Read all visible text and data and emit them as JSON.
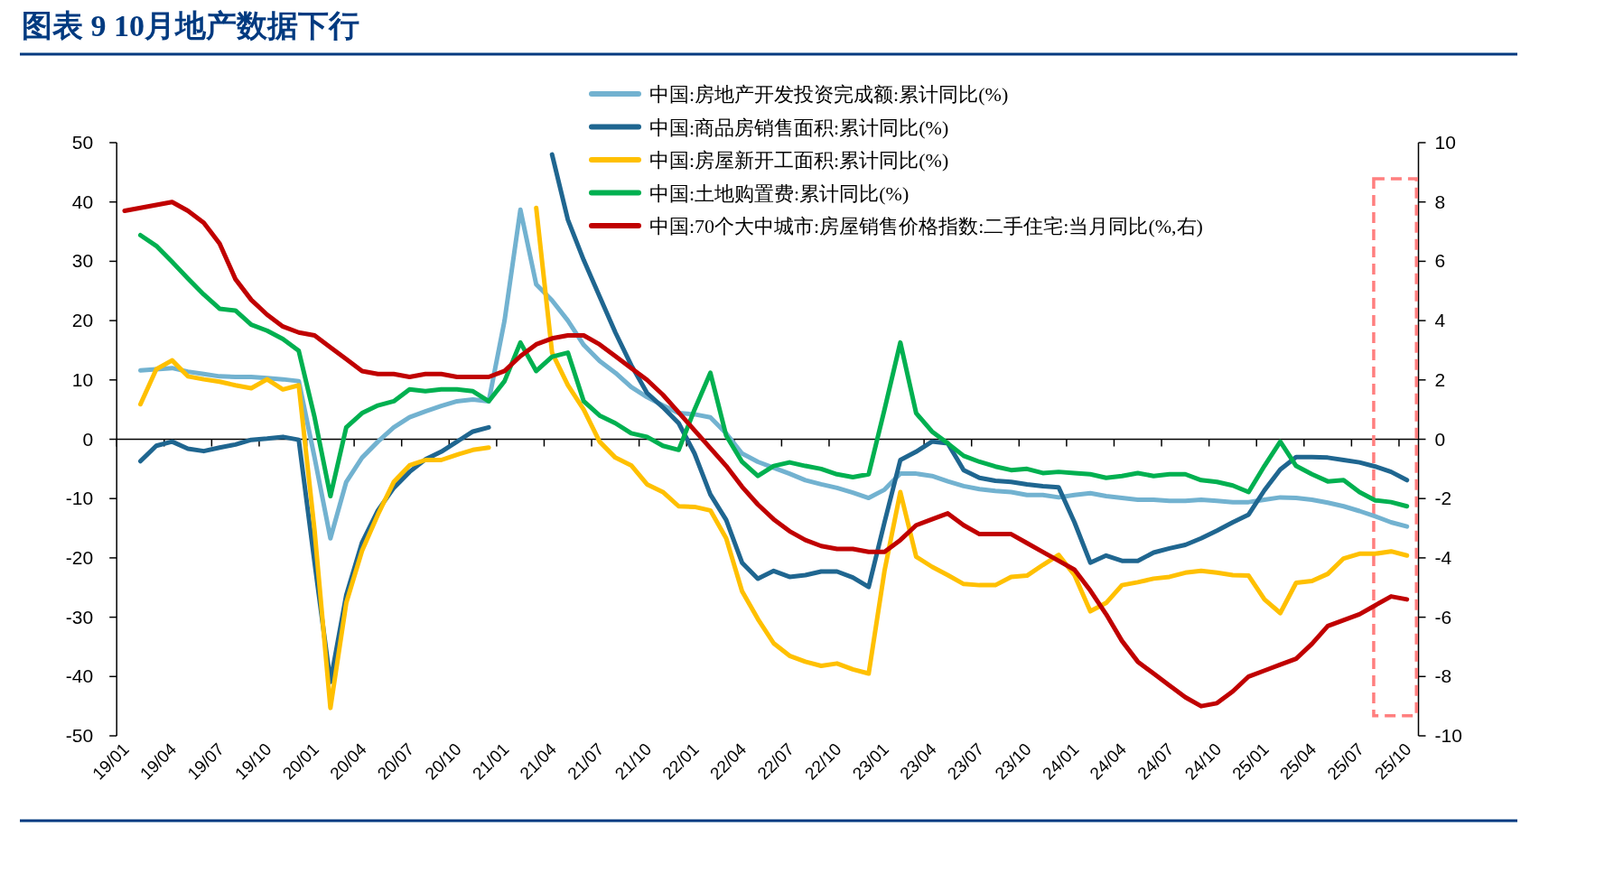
{
  "chart_data": {
    "type": "line",
    "title": "图表 9   10月地产数据下行",
    "categories": [
      "19/01",
      null,
      null,
      "19/04",
      null,
      null,
      "19/07",
      null,
      null,
      "19/10",
      null,
      null,
      "20/01",
      null,
      null,
      "20/04",
      null,
      null,
      "20/07",
      null,
      null,
      "20/10",
      null,
      null,
      "21/01",
      null,
      null,
      "21/04",
      null,
      null,
      "21/07",
      null,
      null,
      "21/10",
      null,
      null,
      "22/01",
      null,
      null,
      "22/04",
      null,
      null,
      "22/07",
      null,
      null,
      "22/10",
      null,
      null,
      "23/01",
      null,
      null,
      "23/04",
      null,
      null,
      "23/07",
      null,
      null,
      "23/10",
      null,
      null,
      "24/01",
      null,
      null,
      "24/04",
      null,
      null,
      "24/07",
      null,
      null,
      "24/10",
      null,
      null,
      "25/01",
      null,
      null,
      "25/04",
      null,
      null,
      "25/07",
      null,
      null,
      "25/10"
    ],
    "series": [
      {
        "name": "中国:房地产开发投资完成额:累计同比(%)",
        "color": "#72b2d0",
        "values": [
          null,
          11.6,
          11.8,
          12.0,
          11.4,
          11.0,
          10.6,
          10.5,
          10.5,
          10.3,
          10.1,
          9.8,
          -3.1,
          -16.7,
          -7.2,
          -3.1,
          -0.4,
          2.0,
          3.7,
          4.7,
          5.6,
          6.4,
          6.7,
          6.4,
          20.0,
          38.7,
          26.1,
          23.4,
          20.0,
          15.9,
          13.2,
          11.2,
          8.8,
          7.1,
          5.7,
          4.4,
          4.2,
          3.7,
          1.0,
          -2.4,
          -3.8,
          -4.8,
          -5.8,
          -6.9,
          -7.6,
          -8.2,
          -9.0,
          -9.9,
          -8.5,
          -5.8,
          -5.8,
          -6.2,
          -7.1,
          -7.9,
          -8.4,
          -8.7,
          -8.9,
          -9.4,
          -9.4,
          -9.8,
          -9.4,
          -9.1,
          -9.6,
          -9.9,
          -10.2,
          -10.2,
          -10.4,
          -10.4,
          -10.2,
          -10.4,
          -10.6,
          -10.6,
          -10.2,
          -9.8,
          -9.9,
          -10.2,
          -10.7,
          -11.3,
          -12.1,
          -13.0,
          -14.0,
          -14.7
        ]
      },
      {
        "name": "中国:商品房销售面积:累计同比(%)",
        "color": "#1f6690",
        "values": [
          null,
          -3.7,
          -1.1,
          -0.4,
          -1.6,
          -2.0,
          -1.4,
          -0.9,
          -0.1,
          0.1,
          0.4,
          -0.1,
          -20.8,
          -40.9,
          -26.3,
          -17.4,
          -12.0,
          -8.2,
          -5.5,
          -3.4,
          -2.1,
          -0.4,
          1.3,
          2.0,
          null,
          null,
          null,
          48.0,
          37.0,
          30.2,
          24.1,
          18.0,
          12.5,
          7.8,
          5.4,
          2.7,
          -2.4,
          -9.3,
          -13.6,
          -20.8,
          -23.5,
          -22.2,
          -23.2,
          -22.9,
          -22.3,
          -22.3,
          -23.3,
          -24.9,
          -14.0,
          -3.5,
          -2.1,
          -0.4,
          -0.7,
          -5.2,
          -6.5,
          -7.0,
          -7.2,
          -7.6,
          -7.9,
          -8.1,
          -14.0,
          -20.8,
          -19.6,
          -20.5,
          -20.5,
          -19.1,
          -18.4,
          -17.8,
          -16.7,
          -15.4,
          -14.0,
          -12.7,
          -8.6,
          -5.1,
          -3.0,
          -3.0,
          -3.1,
          -3.5,
          -3.9,
          -4.6,
          -5.5,
          -6.9
        ]
      },
      {
        "name": "中国:房屋新开工面积:累计同比(%)",
        "color": "#ffc000",
        "values": [
          null,
          5.9,
          11.8,
          13.3,
          10.6,
          10.1,
          9.7,
          9.1,
          8.6,
          10.1,
          8.4,
          9.1,
          -15.4,
          -45.3,
          -27.6,
          -18.8,
          -12.7,
          -7.2,
          -4.4,
          -3.5,
          -3.5,
          -2.6,
          -1.8,
          -1.4,
          null,
          null,
          39.0,
          14.6,
          9.1,
          5.0,
          -0.4,
          -3.1,
          -4.4,
          -7.6,
          -8.9,
          -11.3,
          -11.4,
          -12.0,
          -16.7,
          -25.6,
          -30.3,
          -34.4,
          -36.5,
          -37.5,
          -38.2,
          -37.8,
          -38.8,
          -39.5,
          -22.2,
          -8.9,
          -19.8,
          -21.5,
          -22.9,
          -24.4,
          -24.6,
          -24.6,
          -23.2,
          -23.0,
          -21.2,
          -19.5,
          -22.9,
          -29.0,
          -27.6,
          -24.6,
          -24.1,
          -23.5,
          -23.2,
          -22.5,
          -22.2,
          -22.5,
          -22.9,
          -23.0,
          -27.0,
          -29.3,
          -24.2,
          -23.9,
          -22.7,
          -20.1,
          -19.3,
          -19.3,
          -18.9,
          -19.6
        ]
      },
      {
        "name": "中国:土地购置费:累计同比(%)",
        "color": "#00b050",
        "values": [
          null,
          34.4,
          32.6,
          29.9,
          27.1,
          24.4,
          22.0,
          21.7,
          19.3,
          18.3,
          16.9,
          14.9,
          3.7,
          -9.6,
          2.0,
          4.4,
          5.7,
          6.4,
          8.4,
          8.1,
          8.4,
          8.4,
          8.1,
          6.4,
          9.8,
          16.3,
          11.5,
          13.9,
          14.6,
          6.4,
          4.0,
          2.7,
          1.0,
          0.4,
          -1.1,
          -1.8,
          5.0,
          11.2,
          0.6,
          -3.8,
          -6.2,
          -4.5,
          -3.9,
          -4.5,
          -5.0,
          -5.9,
          -6.4,
          -5.9,
          5.0,
          16.3,
          4.4,
          1.3,
          -0.7,
          -2.8,
          -3.8,
          -4.6,
          -5.2,
          -5.0,
          -5.7,
          -5.5,
          -5.7,
          -5.9,
          -6.5,
          -6.2,
          -5.7,
          -6.2,
          -5.9,
          -5.9,
          -6.9,
          -7.2,
          -7.8,
          -8.9,
          -4.5,
          -0.4,
          -4.5,
          -5.9,
          -7.1,
          -6.9,
          -8.9,
          -10.3,
          -10.6,
          -11.3
        ]
      },
      {
        "name": "中国:70个大中城市:房屋销售价格指数:二手住宅:当月同比(%,右)",
        "color": "#c00000",
        "axis": "y2",
        "values": [
          7.7,
          7.8,
          7.9,
          8.0,
          7.7,
          7.3,
          6.6,
          5.4,
          4.7,
          4.2,
          3.8,
          3.6,
          3.5,
          3.1,
          2.7,
          2.3,
          2.2,
          2.2,
          2.1,
          2.2,
          2.2,
          2.1,
          2.1,
          2.1,
          2.3,
          2.8,
          3.2,
          3.4,
          3.5,
          3.5,
          3.2,
          2.8,
          2.4,
          2.0,
          1.5,
          0.9,
          0.3,
          -0.3,
          -0.9,
          -1.6,
          -2.2,
          -2.7,
          -3.1,
          -3.4,
          -3.6,
          -3.7,
          -3.7,
          -3.8,
          -3.8,
          -3.4,
          -2.9,
          -2.7,
          -2.5,
          -2.9,
          -3.2,
          -3.2,
          -3.2,
          -3.5,
          -3.8,
          -4.1,
          -4.4,
          -5.1,
          -5.9,
          -6.8,
          -7.5,
          -7.9,
          -8.3,
          -8.7,
          -9.0,
          -8.9,
          -8.5,
          -8.0,
          -7.8,
          -7.6,
          -7.4,
          -6.9,
          -6.3,
          -6.1,
          -5.9,
          -5.6,
          -5.3,
          -5.4
        ]
      }
    ],
    "ylim": [
      -50,
      50
    ],
    "yticks": [
      -50,
      -40,
      -30,
      -20,
      -10,
      0,
      10,
      20,
      30,
      40,
      50
    ],
    "y2lim": [
      -10,
      10
    ],
    "y2ticks": [
      -10,
      -8,
      -6,
      -4,
      -2,
      0,
      2,
      4,
      6,
      8,
      10
    ],
    "legend": "top",
    "line_style": "solid",
    "marker": "none"
  }
}
